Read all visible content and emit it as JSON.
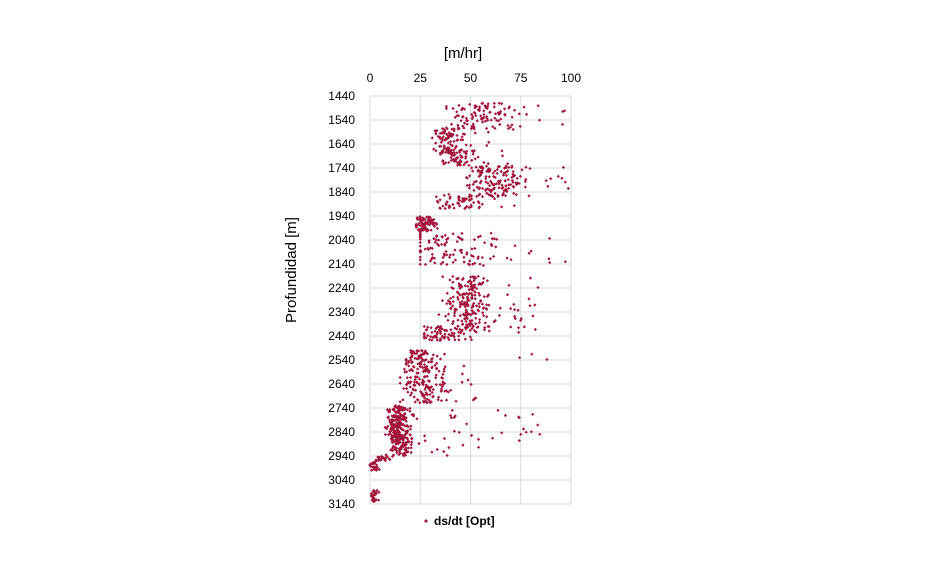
{
  "chart_data": {
    "type": "scatter",
    "xlabel": "[m/hr]",
    "ylabel": "Profundidad [m]",
    "x_axis_position": "top",
    "y_axis_inverted": true,
    "xlim": [
      0,
      100
    ],
    "ylim": [
      1440,
      3140
    ],
    "x_ticks": [
      0,
      25,
      50,
      75,
      100
    ],
    "y_ticks": [
      1440,
      1540,
      1640,
      1740,
      1840,
      1940,
      2040,
      2140,
      2240,
      2340,
      2440,
      2540,
      2640,
      2740,
      2840,
      2940,
      3040,
      3140
    ],
    "grid": true,
    "legend_position": "bottom",
    "series": [
      {
        "name": "ds/dt [Opt]",
        "color": "#a3143c",
        "marker": "diamond",
        "clusters": [
          {
            "depth": [
              1470,
              1580
            ],
            "x_mean": 55,
            "x_sd": 10,
            "x_min": 38,
            "x_max": 100,
            "count": 110
          },
          {
            "depth": [
              1575,
              1680
            ],
            "x_mean": 38,
            "x_sd": 3.5,
            "x_min": 30,
            "x_max": 60,
            "count": 90
          },
          {
            "depth": [
              1660,
              1730
            ],
            "x_mean": 43,
            "x_sd": 4,
            "x_min": 35,
            "x_max": 70,
            "count": 70
          },
          {
            "depth": [
              1730,
              1860
            ],
            "x_mean": 62,
            "x_sd": 7,
            "x_min": 48,
            "x_max": 100,
            "count": 150
          },
          {
            "depth": [
              1850,
              1910
            ],
            "x_mean": 45,
            "x_sd": 7,
            "x_min": 33,
            "x_max": 75,
            "count": 60
          },
          {
            "depth": [
              1940,
              2005
            ],
            "x_mean": 27,
            "x_sd": 2.5,
            "x_min": 23,
            "x_max": 36,
            "count": 80
          },
          {
            "depth": [
              2010,
              2150
            ],
            "x_mean": 38,
            "x_sd": 12,
            "x_min": 25,
            "x_max": 100,
            "count": 110
          },
          {
            "depth": [
              2190,
              2420
            ],
            "x_mean": 49,
            "x_sd": 6,
            "x_min": 30,
            "x_max": 85,
            "count": 230
          },
          {
            "depth": [
              2400,
              2460
            ],
            "x_mean": 36,
            "x_sd": 6,
            "x_min": 27,
            "x_max": 75,
            "count": 70
          },
          {
            "depth": [
              2500,
              2560
            ],
            "x_mean": 25,
            "x_sd": 4,
            "x_min": 18,
            "x_max": 93,
            "count": 70
          },
          {
            "depth": [
              2560,
              2720
            ],
            "x_mean": 27,
            "x_sd": 7,
            "x_min": 15,
            "x_max": 55,
            "count": 150
          },
          {
            "depth": [
              2730,
              2880
            ],
            "x_mean": 14,
            "x_sd": 3,
            "x_min": 6,
            "x_max": 85,
            "count": 260
          },
          {
            "depth": [
              2880,
              2940
            ],
            "x_mean": 15,
            "x_sd": 3,
            "x_min": 6,
            "x_max": 55,
            "count": 70
          },
          {
            "depth": [
              2940,
              2960
            ],
            "x_mean": 7,
            "x_sd": 2,
            "x_min": 3,
            "x_max": 15,
            "count": 20
          },
          {
            "depth": [
              2960,
              3000
            ],
            "x_mean": 2,
            "x_sd": 1,
            "x_min": 0,
            "x_max": 5,
            "count": 25
          },
          {
            "depth": [
              3080,
              3130
            ],
            "x_mean": 2,
            "x_sd": 1,
            "x_min": 0,
            "x_max": 5,
            "count": 30
          }
        ]
      }
    ]
  }
}
